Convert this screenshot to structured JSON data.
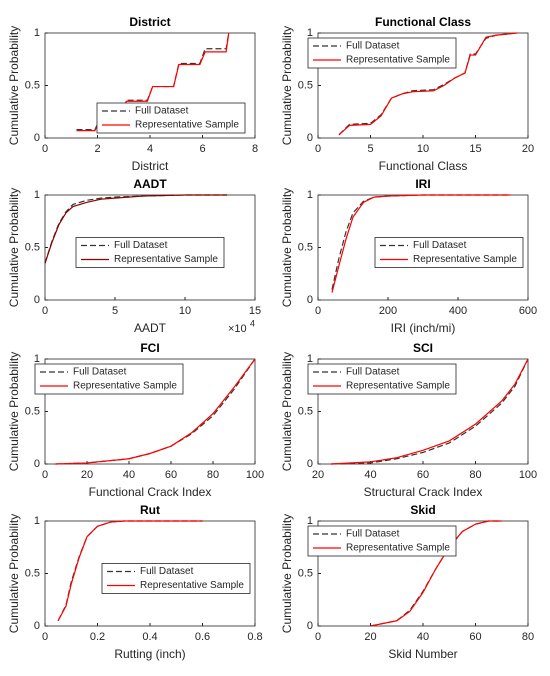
{
  "chart_data": [
    {
      "type": "line",
      "title": "District",
      "xlabel": "District",
      "ylabel": "Cumulative Probability",
      "x": [
        1.2,
        1.9,
        2.1,
        2.9,
        3.1,
        3.9,
        4.1,
        4.9,
        5.1,
        5.9,
        6.1,
        6.9,
        7.0
      ],
      "series": [
        {
          "name": "Full Dataset",
          "color": "#333333",
          "dashed": true,
          "values": [
            0.08,
            0.08,
            0.18,
            0.18,
            0.36,
            0.36,
            0.49,
            0.49,
            0.71,
            0.71,
            0.85,
            0.85,
            1.0
          ]
        },
        {
          "name": "Representative Sample",
          "color": "#ff0000",
          "dashed": false,
          "values": [
            0.07,
            0.07,
            0.17,
            0.17,
            0.35,
            0.35,
            0.49,
            0.49,
            0.7,
            0.7,
            0.82,
            0.82,
            1.0
          ]
        }
      ],
      "xlim": [
        0,
        8
      ],
      "xticks": [
        0,
        2,
        4,
        6,
        8
      ],
      "ylim": [
        0,
        1
      ],
      "yticks": [
        0,
        0.5,
        1
      ],
      "legend": "southeast"
    },
    {
      "type": "line",
      "title": "Functional Class",
      "xlabel": "Functional Class",
      "ylabel": "Cumulative Probability",
      "x": [
        2,
        3,
        5,
        6,
        7,
        8,
        9,
        11,
        12,
        13,
        14,
        14.5,
        15,
        16,
        17,
        19
      ],
      "series": [
        {
          "name": "Full Dataset",
          "color": "#333333",
          "dashed": true,
          "values": [
            0.03,
            0.13,
            0.14,
            0.22,
            0.38,
            0.42,
            0.45,
            0.46,
            0.51,
            0.57,
            0.62,
            0.8,
            0.8,
            0.95,
            0.98,
            1.0
          ]
        },
        {
          "name": "Representative Sample",
          "color": "#ff0000",
          "dashed": false,
          "values": [
            0.03,
            0.12,
            0.13,
            0.21,
            0.38,
            0.42,
            0.44,
            0.45,
            0.5,
            0.57,
            0.62,
            0.79,
            0.79,
            0.96,
            0.98,
            1.0
          ]
        }
      ],
      "xlim": [
        0,
        20
      ],
      "xticks": [
        0,
        5,
        10,
        15,
        20
      ],
      "ylim": [
        0,
        1
      ],
      "yticks": [
        0,
        0.5,
        1
      ],
      "legend": "northwest"
    },
    {
      "type": "line",
      "title": "AADT",
      "xlabel": "AADT",
      "ylabel": "Cumulative Probability",
      "x_multiplier": "×10",
      "x_multiplier_exponent": "4",
      "x": [
        0,
        0.5,
        1,
        1.5,
        2,
        3,
        4,
        5,
        7,
        10,
        13
      ],
      "series": [
        {
          "name": "Full Dataset",
          "color": "#333333",
          "dashed": true,
          "values": [
            0.35,
            0.56,
            0.73,
            0.84,
            0.91,
            0.95,
            0.97,
            0.98,
            0.99,
            1.0,
            1.0
          ]
        },
        {
          "name": "Representative Sample",
          "color": "#8b0000",
          "dashed": false,
          "values": [
            0.35,
            0.55,
            0.72,
            0.83,
            0.89,
            0.93,
            0.96,
            0.97,
            0.99,
            1.0,
            1.0
          ]
        }
      ],
      "xlim": [
        0,
        15
      ],
      "xticks": [
        0,
        5,
        10,
        15
      ],
      "ylim": [
        0,
        1
      ],
      "yticks": [
        0,
        0.5,
        1
      ],
      "legend": "center"
    },
    {
      "type": "line",
      "title": "IRI",
      "xlabel": "IRI (inch/mi)",
      "ylabel": "Cumulative Probability",
      "x": [
        40,
        60,
        80,
        100,
        130,
        160,
        200,
        300,
        400,
        550
      ],
      "series": [
        {
          "name": "Full Dataset",
          "color": "#333333",
          "dashed": true,
          "values": [
            0.1,
            0.4,
            0.65,
            0.83,
            0.94,
            0.98,
            0.99,
            1.0,
            1.0,
            1.0
          ]
        },
        {
          "name": "Representative Sample",
          "color": "#ff0000",
          "dashed": false,
          "values": [
            0.07,
            0.33,
            0.58,
            0.79,
            0.93,
            0.98,
            0.99,
            1.0,
            1.0,
            1.0
          ]
        }
      ],
      "xlim": [
        0,
        600
      ],
      "xticks": [
        0,
        200,
        400,
        600
      ],
      "ylim": [
        0,
        1
      ],
      "yticks": [
        0,
        0.5,
        1
      ],
      "legend": "east"
    },
    {
      "type": "line",
      "title": "FCI",
      "xlabel": "Functional Crack Index",
      "ylabel": "Cumulative Probability",
      "x": [
        5,
        20,
        40,
        50,
        60,
        70,
        80,
        90,
        100
      ],
      "series": [
        {
          "name": "Full Dataset",
          "color": "#333333",
          "dashed": true,
          "values": [
            0,
            0.01,
            0.05,
            0.1,
            0.17,
            0.29,
            0.46,
            0.71,
            1.0
          ]
        },
        {
          "name": "Representative Sample",
          "color": "#ff0000",
          "dashed": false,
          "values": [
            0,
            0.01,
            0.05,
            0.1,
            0.17,
            0.3,
            0.48,
            0.73,
            1.0
          ]
        }
      ],
      "xlim": [
        0,
        100
      ],
      "xticks": [
        0,
        20,
        40,
        60,
        80,
        100
      ],
      "ylim": [
        0,
        1
      ],
      "yticks": [
        0,
        0.5,
        1
      ],
      "legend": "northwest"
    },
    {
      "type": "line",
      "title": "SCI",
      "xlabel": "Structural Crack Index",
      "ylabel": "Cumulative Probability",
      "x": [
        25,
        40,
        50,
        60,
        70,
        80,
        90,
        95,
        100
      ],
      "series": [
        {
          "name": "Full Dataset",
          "color": "#333333",
          "dashed": true,
          "values": [
            0,
            0.01,
            0.05,
            0.11,
            0.2,
            0.36,
            0.58,
            0.74,
            1.0
          ]
        },
        {
          "name": "Representative Sample",
          "color": "#ff0000",
          "dashed": false,
          "values": [
            0,
            0.02,
            0.06,
            0.13,
            0.22,
            0.38,
            0.6,
            0.76,
            1.0
          ]
        }
      ],
      "xlim": [
        20,
        100
      ],
      "xticks": [
        20,
        40,
        60,
        80,
        100
      ],
      "ylim": [
        0,
        1
      ],
      "yticks": [
        0,
        0.5,
        1
      ],
      "legend": "northwest"
    },
    {
      "type": "line",
      "title": "Rut",
      "xlabel": "Rutting (inch)",
      "ylabel": "Cumulative Probability",
      "x": [
        0.05,
        0.08,
        0.1,
        0.13,
        0.16,
        0.2,
        0.25,
        0.3,
        0.4,
        0.6
      ],
      "series": [
        {
          "name": "Full Dataset",
          "color": "#333333",
          "dashed": true,
          "values": [
            0.05,
            0.2,
            0.42,
            0.66,
            0.85,
            0.95,
            0.99,
            1.0,
            1.0,
            1.0
          ]
        },
        {
          "name": "Representative Sample",
          "color": "#ff0000",
          "dashed": false,
          "values": [
            0.05,
            0.19,
            0.4,
            0.65,
            0.85,
            0.95,
            0.99,
            1.0,
            1.0,
            1.0
          ]
        }
      ],
      "xlim": [
        0,
        0.8
      ],
      "xticks": [
        0,
        0.2,
        0.4,
        0.6,
        0.8
      ],
      "ylim": [
        0,
        1
      ],
      "yticks": [
        0,
        0.5,
        1
      ],
      "legend": "east"
    },
    {
      "type": "line",
      "title": "Skid",
      "xlabel": "Skid Number",
      "ylabel": "Cumulative Probability",
      "x": [
        20,
        30,
        35,
        40,
        45,
        50,
        55,
        60,
        65,
        70
      ],
      "series": [
        {
          "name": "Full Dataset",
          "color": "#333333",
          "dashed": true,
          "values": [
            0,
            0.05,
            0.15,
            0.33,
            0.55,
            0.75,
            0.9,
            0.97,
            1.0,
            1.0
          ]
        },
        {
          "name": "Representative Sample",
          "color": "#ff0000",
          "dashed": false,
          "values": [
            0,
            0.05,
            0.14,
            0.32,
            0.55,
            0.75,
            0.9,
            0.97,
            1.0,
            1.0
          ]
        }
      ],
      "xlim": [
        0,
        80
      ],
      "xticks": [
        0,
        20,
        40,
        60,
        80
      ],
      "ylim": [
        0,
        1
      ],
      "yticks": [
        0,
        0.5,
        1
      ],
      "legend": "northwest"
    }
  ]
}
